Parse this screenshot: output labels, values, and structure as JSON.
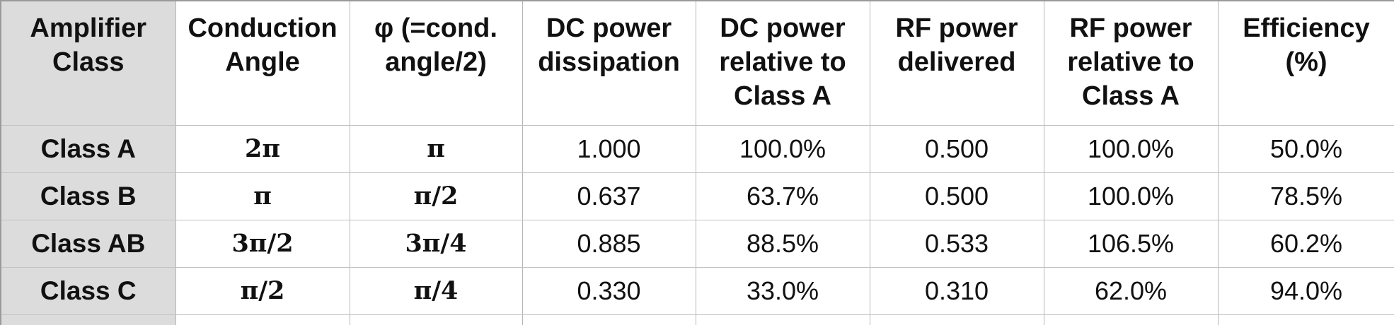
{
  "table": {
    "headers": [
      "Amplifier Class",
      "Conduction Angle",
      "φ (=cond. angle/2)",
      "DC power dissipation",
      "DC power relative to Class A",
      "RF power delivered",
      "RF power relative to Class A",
      "Efficiency (%)"
    ],
    "rows": [
      [
        "Class A",
        "2π",
        "π",
        "1.000",
        "100.0%",
        "0.500",
        "100.0%",
        "50.0%"
      ],
      [
        "Class B",
        "π",
        "π/2",
        "0.637",
        "63.7%",
        "0.500",
        "100.0%",
        "78.5%"
      ],
      [
        "Class AB",
        "3π/2",
        "3π/4",
        "0.885",
        "88.5%",
        "0.533",
        "106.5%",
        "60.2%"
      ],
      [
        "Class C",
        "π/2",
        "π/4",
        "0.330",
        "33.0%",
        "0.310",
        "62.0%",
        "94.0%"
      ]
    ]
  }
}
